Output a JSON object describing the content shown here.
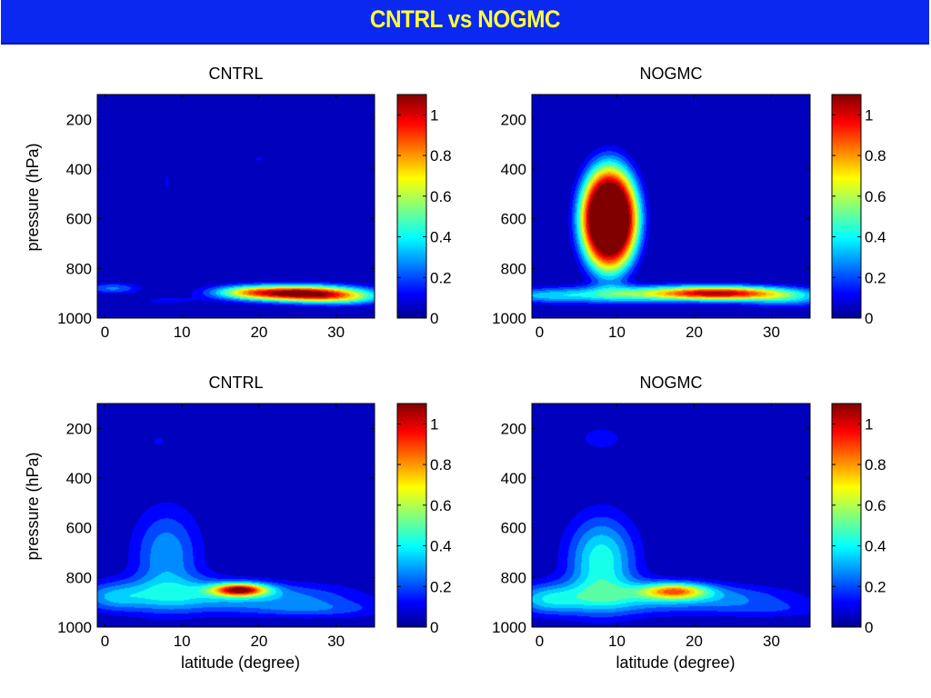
{
  "header": {
    "title": "CNTRL vs NOGMC",
    "background_color": "#0A28F0",
    "title_color": "#FFFF3C"
  },
  "colormap": "jet",
  "colorbar": {
    "min": 0,
    "max": 1.1,
    "ticks": [
      0,
      0.2,
      0.4,
      0.6,
      0.8,
      1
    ],
    "tick_labels": [
      "0",
      "0.2",
      "0.4",
      "0.6",
      "0.8",
      "1"
    ]
  },
  "chart_data": [
    {
      "type": "heatmap",
      "title": "CNTRL",
      "xlabel": "",
      "ylabel": "pressure (hPa)",
      "xlim": [
        -1,
        35
      ],
      "ylim": [
        1000,
        100
      ],
      "xticks": [
        0,
        10,
        20,
        30
      ],
      "xtick_labels": [
        "0",
        "10",
        "20",
        "30"
      ],
      "yticks": [
        200,
        400,
        600,
        800,
        1000
      ],
      "ytick_labels": [
        "200",
        "400",
        "600",
        "800",
        "1000"
      ],
      "features": [
        {
          "lat": 25,
          "p": 900,
          "sx": 5.5,
          "sp": 22,
          "v": 1.15
        },
        {
          "lat": 18,
          "p": 895,
          "sx": 3,
          "sp": 18,
          "v": 0.3
        },
        {
          "lat": 31,
          "p": 920,
          "sx": 4,
          "sp": 20,
          "v": 0.35
        },
        {
          "lat": 1,
          "p": 880,
          "sx": 2.5,
          "sp": 15,
          "v": 0.25
        },
        {
          "lat": 8,
          "p": 930,
          "sx": 3,
          "sp": 12,
          "v": 0.1
        },
        {
          "lat": 8,
          "p": 450,
          "sx": 1,
          "sp": 120,
          "v": 0.08
        },
        {
          "lat": 20,
          "p": 360,
          "sx": 2,
          "sp": 40,
          "v": 0.08
        }
      ]
    },
    {
      "type": "heatmap",
      "title": "NOGMC",
      "xlabel": "",
      "ylabel": "",
      "xlim": [
        -1,
        35
      ],
      "ylim": [
        1000,
        100
      ],
      "xticks": [
        0,
        10,
        20,
        30
      ],
      "xtick_labels": [
        "0",
        "10",
        "20",
        "30"
      ],
      "yticks": [
        200,
        400,
        600,
        800,
        1000
      ],
      "ytick_labels": [
        "200",
        "400",
        "600",
        "800",
        "1000"
      ],
      "features": [
        {
          "lat": 9,
          "p": 600,
          "sx": 3.2,
          "sp": 180,
          "v": 1.5,
          "flat": 4
        },
        {
          "lat": 10,
          "p": 905,
          "sx": 6,
          "sp": 25,
          "v": 0.4
        },
        {
          "lat": 0,
          "p": 910,
          "sx": 4,
          "sp": 20,
          "v": 0.25
        },
        {
          "lat": 23,
          "p": 900,
          "sx": 6,
          "sp": 20,
          "v": 1.05
        },
        {
          "lat": 32,
          "p": 920,
          "sx": 4,
          "sp": 25,
          "v": 0.3
        }
      ]
    },
    {
      "type": "heatmap",
      "title": "CNTRL",
      "xlabel": "latitude (degree)",
      "ylabel": "pressure (hPa)",
      "xlim": [
        -1,
        35
      ],
      "ylim": [
        1000,
        100
      ],
      "xticks": [
        0,
        10,
        20,
        30
      ],
      "xtick_labels": [
        "0",
        "10",
        "20",
        "30"
      ],
      "yticks": [
        200,
        400,
        600,
        800,
        1000
      ],
      "ytick_labels": [
        "200",
        "400",
        "600",
        "800",
        "1000"
      ],
      "features": [
        {
          "lat": 17.5,
          "p": 850,
          "sx": 2.5,
          "sp": 18,
          "v": 0.95
        },
        {
          "lat": 10,
          "p": 870,
          "sx": 7,
          "sp": 50,
          "v": 0.3
        },
        {
          "lat": 8,
          "p": 710,
          "sx": 3,
          "sp": 130,
          "v": 0.3
        },
        {
          "lat": 24,
          "p": 880,
          "sx": 7,
          "sp": 40,
          "v": 0.22
        },
        {
          "lat": 28,
          "p": 930,
          "sx": 7,
          "sp": 25,
          "v": 0.15
        },
        {
          "lat": 1,
          "p": 880,
          "sx": 3,
          "sp": 40,
          "v": 0.22
        },
        {
          "lat": 7,
          "p": 250,
          "sx": 2.5,
          "sp": 60,
          "v": 0.08
        }
      ]
    },
    {
      "type": "heatmap",
      "title": "NOGMC",
      "xlabel": "latitude (degree)",
      "ylabel": "",
      "xlim": [
        -1,
        35
      ],
      "ylim": [
        1000,
        100
      ],
      "xticks": [
        0,
        10,
        20,
        30
      ],
      "xtick_labels": [
        "0",
        "10",
        "20",
        "30"
      ],
      "yticks": [
        200,
        400,
        600,
        800,
        1000
      ],
      "ytick_labels": [
        "200",
        "400",
        "600",
        "800",
        "1000"
      ],
      "features": [
        {
          "lat": 17.5,
          "p": 855,
          "sx": 3,
          "sp": 22,
          "v": 0.65
        },
        {
          "lat": 8,
          "p": 730,
          "sx": 3,
          "sp": 120,
          "v": 0.45
        },
        {
          "lat": 10,
          "p": 880,
          "sx": 8,
          "sp": 50,
          "v": 0.3
        },
        {
          "lat": 24,
          "p": 880,
          "sx": 7,
          "sp": 35,
          "v": 0.2
        },
        {
          "lat": 1,
          "p": 890,
          "sx": 3,
          "sp": 40,
          "v": 0.25
        },
        {
          "lat": 8,
          "p": 240,
          "sx": 3,
          "sp": 50,
          "v": 0.1
        },
        {
          "lat": 30,
          "p": 930,
          "sx": 6,
          "sp": 25,
          "v": 0.12
        }
      ]
    }
  ]
}
